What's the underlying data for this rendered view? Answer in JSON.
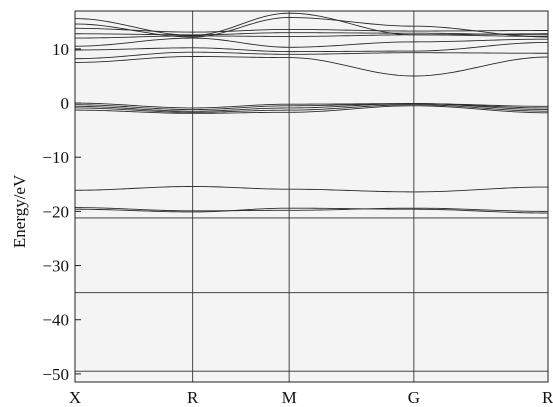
{
  "chart_data": {
    "type": "line",
    "title": "",
    "xlabel": "",
    "ylabel": "Energy/eV",
    "ylim": [
      -51.5,
      17
    ],
    "yticks": [
      10,
      0,
      -10,
      -20,
      -30,
      -40,
      -50
    ],
    "ytick_labels": [
      "10",
      "0",
      "−10",
      "−20",
      "−30",
      "−40",
      "−50"
    ],
    "grid": false,
    "k_path": [
      "X",
      "R",
      "M",
      "G",
      "R"
    ],
    "k_positions": [
      0,
      1,
      1.82,
      2.88,
      4.02
    ],
    "colors": {
      "background": "#f4f4f4",
      "lines": "#2b2b2b"
    },
    "series": [
      {
        "x": [
          0,
          1,
          1.82,
          2.88,
          4.02
        ],
        "y": [
          -49.5,
          -49.5,
          -49.5,
          -49.5,
          -49.5
        ]
      },
      {
        "x": [
          0,
          1,
          1.82,
          2.88,
          4.02
        ],
        "y": [
          -35.0,
          -35.0,
          -35.0,
          -35.0,
          -35.0
        ]
      },
      {
        "x": [
          0,
          1,
          1.82,
          2.88,
          4.02
        ],
        "y": [
          -21.2,
          -21.2,
          -21.2,
          -21.2,
          -21.2
        ]
      },
      {
        "x": [
          0,
          1,
          1.82,
          2.88,
          4.02
        ],
        "y": [
          -19.3,
          -19.9,
          -19.8,
          -19.4,
          -20.0
        ]
      },
      {
        "x": [
          0,
          1,
          1.82,
          2.88,
          4.02
        ],
        "y": [
          -19.6,
          -20.1,
          -19.4,
          -19.6,
          -20.3
        ]
      },
      {
        "x": [
          0,
          1,
          1.82,
          2.88,
          4.02
        ],
        "y": [
          -16.1,
          -15.4,
          -15.9,
          -16.4,
          -15.5
        ]
      },
      {
        "x": [
          0,
          1,
          1.82,
          2.88,
          4.02
        ],
        "y": [
          -1.3,
          -1.9,
          -1.7,
          -0.5,
          -1.8
        ]
      },
      {
        "x": [
          0,
          1,
          1.82,
          2.88,
          4.02
        ],
        "y": [
          -0.9,
          -1.7,
          -1.3,
          -0.3,
          -1.5
        ]
      },
      {
        "x": [
          0,
          1,
          1.82,
          2.88,
          4.02
        ],
        "y": [
          -0.6,
          -1.5,
          -0.9,
          -0.1,
          -1.2
        ]
      },
      {
        "x": [
          0,
          1,
          1.82,
          2.88,
          4.02
        ],
        "y": [
          -0.3,
          -1.2,
          -0.5,
          -0.1,
          -0.9
        ]
      },
      {
        "x": [
          0,
          1,
          1.82,
          2.88,
          4.02
        ],
        "y": [
          0.0,
          -0.9,
          -0.2,
          -0.1,
          -0.6
        ]
      },
      {
        "x": [
          0,
          1,
          1.82,
          2.88,
          4.02
        ],
        "y": [
          7.5,
          8.6,
          8.4,
          5.0,
          8.5
        ]
      },
      {
        "x": [
          0,
          1,
          1.82,
          2.88,
          4.02
        ],
        "y": [
          8.2,
          9.4,
          9.0,
          9.3,
          9.2
        ]
      },
      {
        "x": [
          0,
          1,
          1.82,
          2.88,
          4.02
        ],
        "y": [
          9.8,
          10.2,
          9.5,
          9.6,
          11.2
        ]
      },
      {
        "x": [
          0,
          1,
          1.82,
          2.88,
          4.02
        ],
        "y": [
          10.5,
          12.0,
          10.3,
          11.3,
          11.8
        ]
      },
      {
        "x": [
          0,
          1,
          1.82,
          2.88,
          4.02
        ],
        "y": [
          12.0,
          12.4,
          12.3,
          12.6,
          12.3
        ]
      },
      {
        "x": [
          0,
          1,
          1.82,
          2.88,
          4.02
        ],
        "y": [
          12.8,
          12.6,
          13.0,
          12.9,
          12.6
        ]
      },
      {
        "x": [
          0,
          1,
          1.82,
          2.88,
          4.02
        ],
        "y": [
          13.8,
          13.1,
          13.6,
          13.3,
          13.4
        ]
      },
      {
        "x": [
          0,
          1,
          1.82,
          2.88,
          4.02
        ],
        "y": [
          14.6,
          12.2,
          15.8,
          14.2,
          12.2
        ]
      },
      {
        "x": [
          0,
          1,
          1.82,
          2.88,
          4.02
        ],
        "y": [
          15.6,
          12.5,
          16.6,
          12.6,
          12.8
        ]
      }
    ]
  }
}
